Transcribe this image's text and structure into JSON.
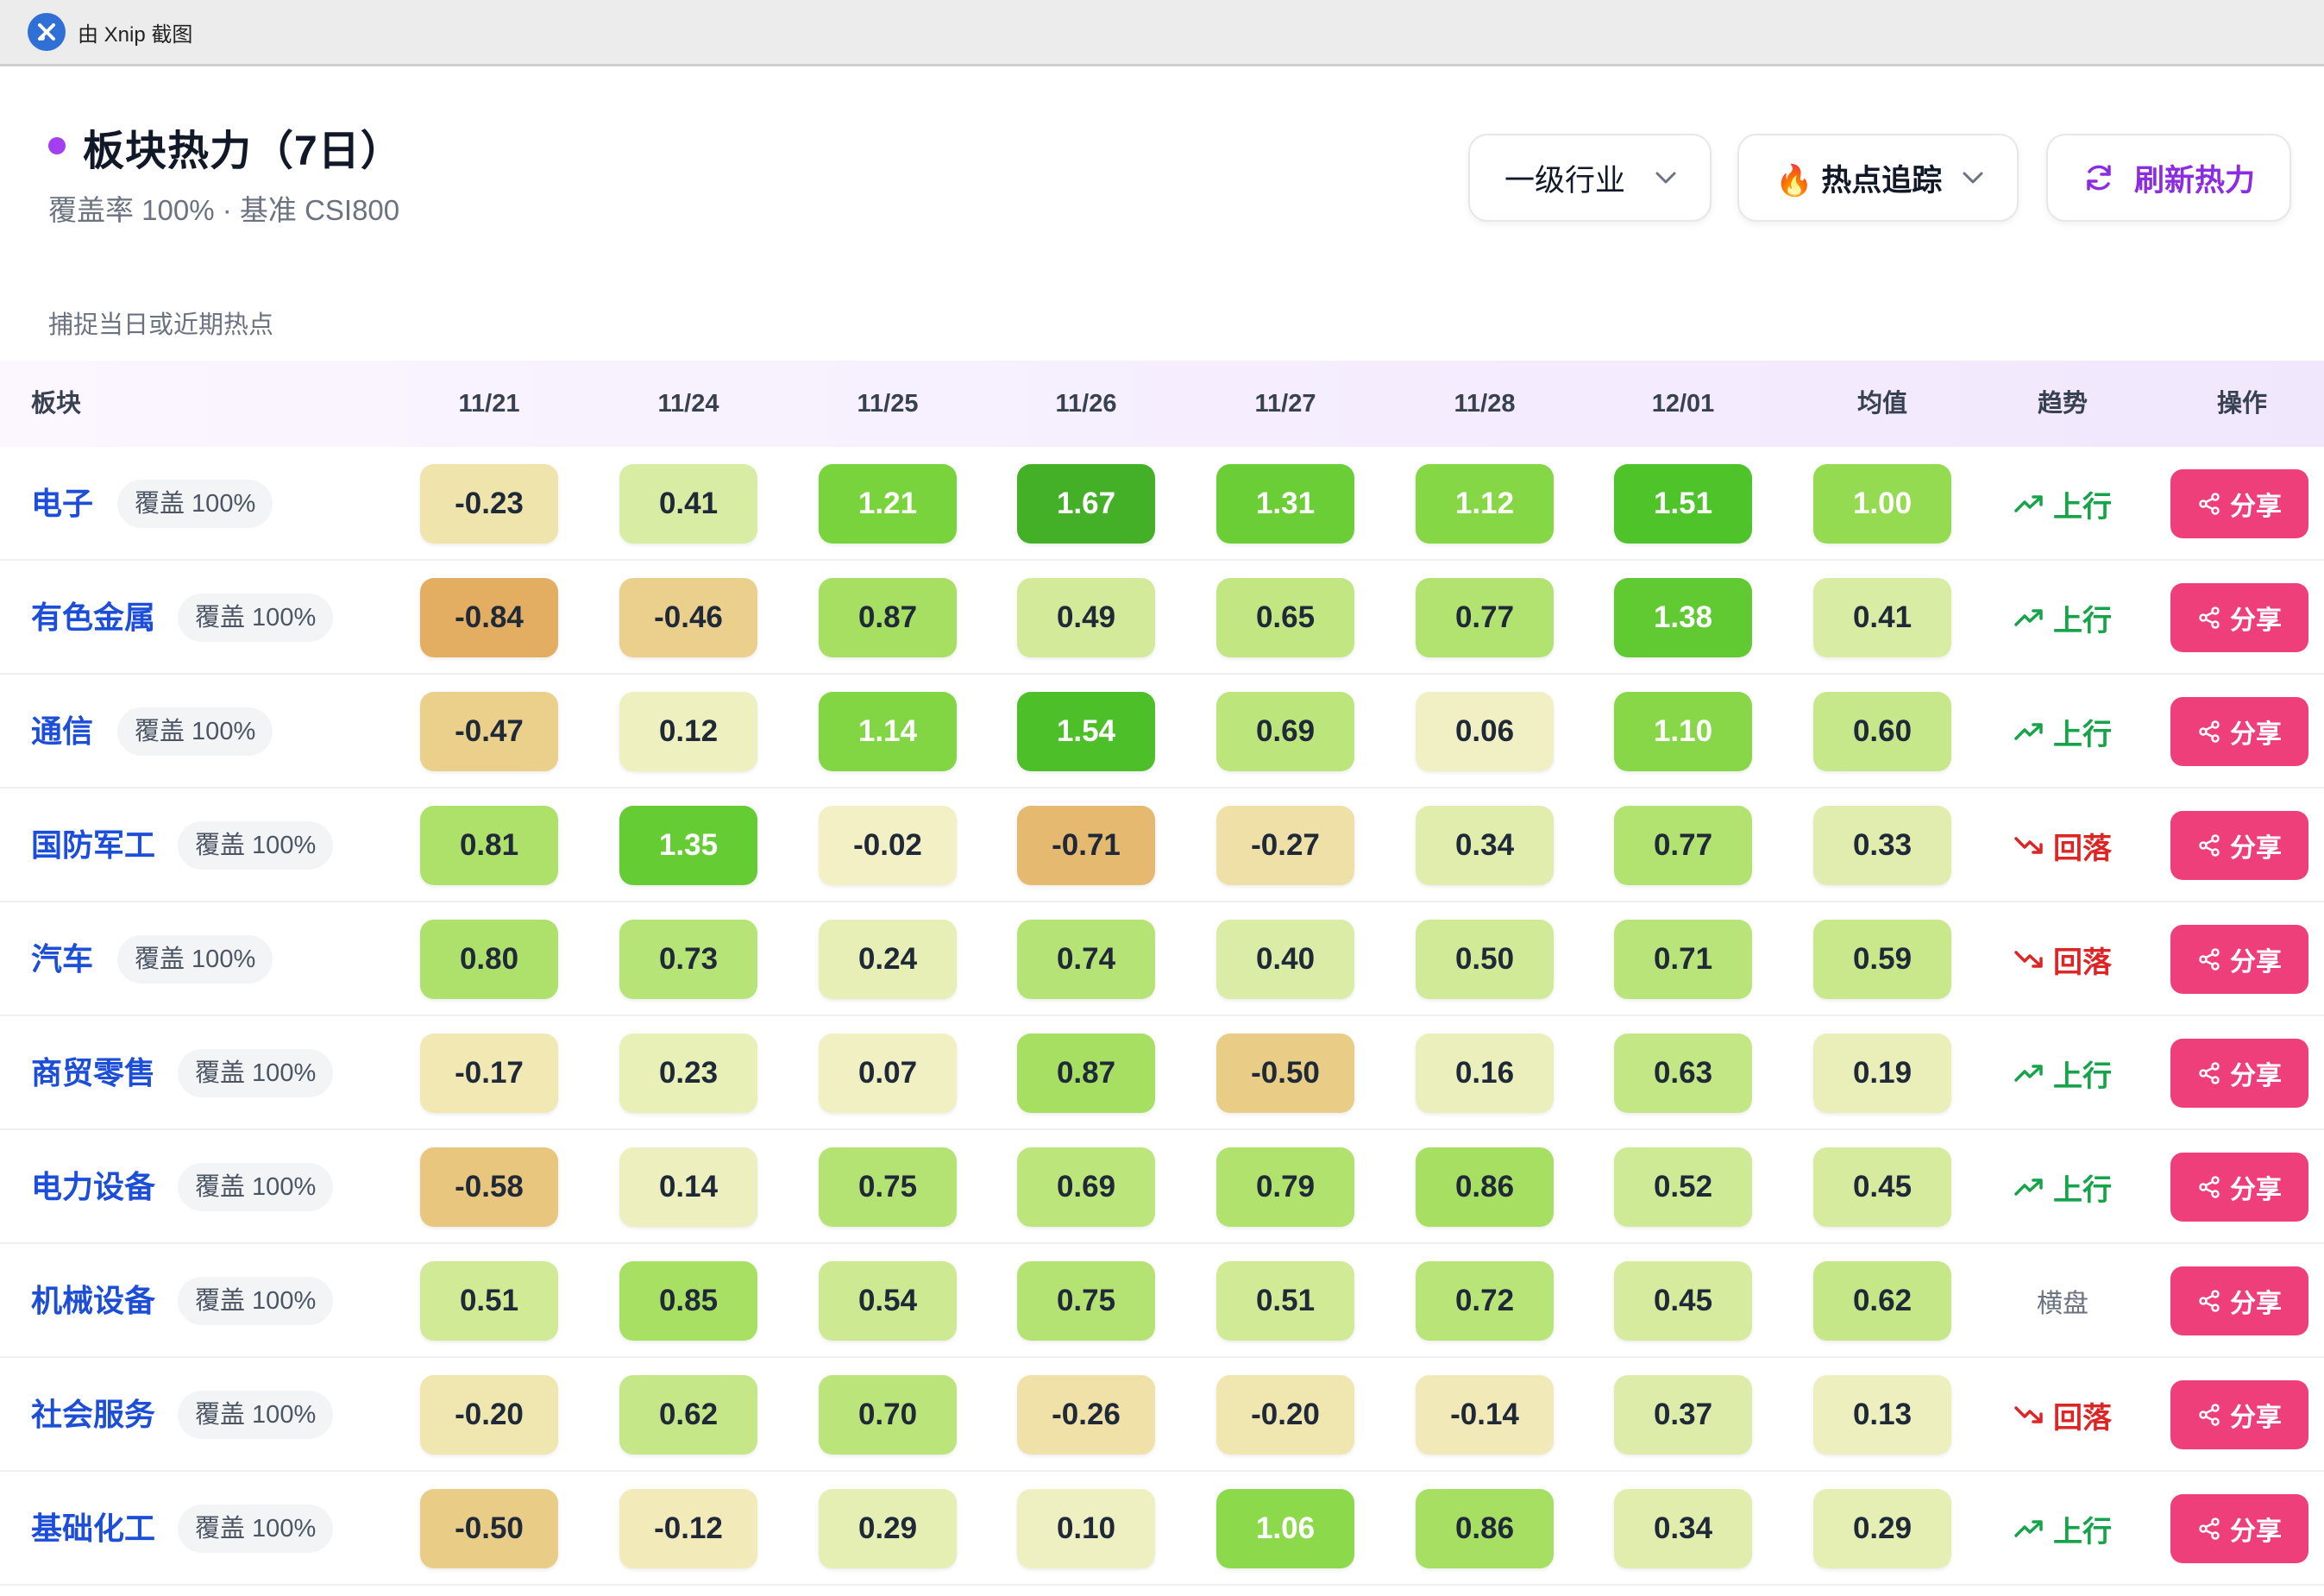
{
  "window": {
    "title": "由 Xnip 截图"
  },
  "header": {
    "title": "板块热力（7日）",
    "subtitle": "覆盖率 100% · 基准 CSI800",
    "hint": "捕捉当日或近期热点",
    "accent_color": "#a23ff0"
  },
  "controls": {
    "industry_select": {
      "value": "一级行业"
    },
    "mode_select": {
      "icon": "fire-icon",
      "value": "🔥 热点追踪"
    },
    "refresh_button": {
      "label": "刷新热力",
      "icon": "refresh-icon"
    }
  },
  "table": {
    "columns": [
      "板块",
      "11/21",
      "11/24",
      "11/25",
      "11/26",
      "11/27",
      "11/28",
      "12/01",
      "均值",
      "趋势",
      "操作"
    ],
    "share_label": "分享",
    "rows": [
      {
        "name": "电子",
        "coverage": "覆盖 100%",
        "values": [
          "-0.23",
          "0.41",
          "1.21",
          "1.67",
          "1.31",
          "1.12",
          "1.51"
        ],
        "avg": "1.00",
        "trend": "上行",
        "trend_dir": "up"
      },
      {
        "name": "有色金属",
        "coverage": "覆盖 100%",
        "values": [
          "-0.84",
          "-0.46",
          "0.87",
          "0.49",
          "0.65",
          "0.77",
          "1.38"
        ],
        "avg": "0.41",
        "trend": "上行",
        "trend_dir": "up"
      },
      {
        "name": "通信",
        "coverage": "覆盖 100%",
        "values": [
          "-0.47",
          "0.12",
          "1.14",
          "1.54",
          "0.69",
          "0.06",
          "1.10"
        ],
        "avg": "0.60",
        "trend": "上行",
        "trend_dir": "up"
      },
      {
        "name": "国防军工",
        "coverage": "覆盖 100%",
        "values": [
          "0.81",
          "1.35",
          "-0.02",
          "-0.71",
          "-0.27",
          "0.34",
          "0.77"
        ],
        "avg": "0.33",
        "trend": "回落",
        "trend_dir": "down"
      },
      {
        "name": "汽车",
        "coverage": "覆盖 100%",
        "values": [
          "0.80",
          "0.73",
          "0.24",
          "0.74",
          "0.40",
          "0.50",
          "0.71"
        ],
        "avg": "0.59",
        "trend": "回落",
        "trend_dir": "down"
      },
      {
        "name": "商贸零售",
        "coverage": "覆盖 100%",
        "values": [
          "-0.17",
          "0.23",
          "0.07",
          "0.87",
          "-0.50",
          "0.16",
          "0.63"
        ],
        "avg": "0.19",
        "trend": "上行",
        "trend_dir": "up"
      },
      {
        "name": "电力设备",
        "coverage": "覆盖 100%",
        "values": [
          "-0.58",
          "0.14",
          "0.75",
          "0.69",
          "0.79",
          "0.86",
          "0.52"
        ],
        "avg": "0.45",
        "trend": "上行",
        "trend_dir": "up"
      },
      {
        "name": "机械设备",
        "coverage": "覆盖 100%",
        "values": [
          "0.51",
          "0.85",
          "0.54",
          "0.75",
          "0.51",
          "0.72",
          "0.45"
        ],
        "avg": "0.62",
        "trend": "横盘",
        "trend_dir": "flat"
      },
      {
        "name": "社会服务",
        "coverage": "覆盖 100%",
        "values": [
          "-0.20",
          "0.62",
          "0.70",
          "-0.26",
          "-0.20",
          "-0.14",
          "0.37"
        ],
        "avg": "0.13",
        "trend": "回落",
        "trend_dir": "down"
      },
      {
        "name": "基础化工",
        "coverage": "覆盖 100%",
        "values": [
          "-0.50",
          "-0.12",
          "0.29",
          "0.10",
          "1.06",
          "0.86",
          "0.34"
        ],
        "avg": "0.29",
        "trend": "上行",
        "trend_dir": "up"
      }
    ]
  },
  "colors": {
    "sector_link": "#1d4ed8",
    "share_button": "#ee3f7a",
    "trend_up": "#16a34a",
    "trend_down": "#dc2626"
  }
}
